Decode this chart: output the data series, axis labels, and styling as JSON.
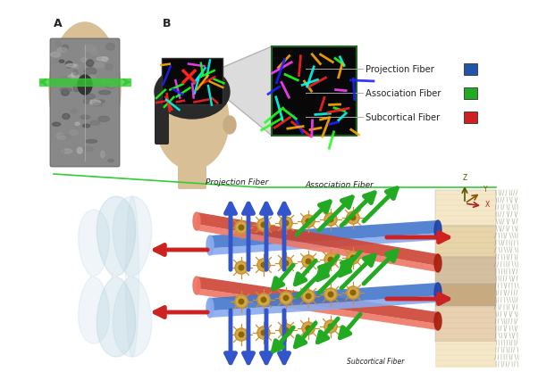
{
  "bg_color": "#ffffff",
  "legend_items": [
    {
      "label": "Projection Fiber",
      "color": "#2255aa"
    },
    {
      "label": "Association Fiber",
      "color": "#22aa22"
    },
    {
      "label": "Subcortical Fiber",
      "color": "#cc2222"
    }
  ],
  "label_A": "A",
  "label_B": "B",
  "proj_fiber_label": "Projection Fiber",
  "assoc_fiber_label": "Association Fiber",
  "subcort_fiber_label": "Subcortical Fiber",
  "proj_color": "#3355cc",
  "assoc_color": "#22aa22",
  "subcort_color": "#cc2222",
  "green_line_color": "#33cc33",
  "neuron_body_color": "#d4a84a",
  "neuron_ring_color": "#c89030",
  "skin_color": "#d9bf95",
  "hair_color": "#2a2a2a",
  "zoom_bg": "#b0b0b0",
  "dti_bg": "#080808",
  "cyl_blue_main": "#4477cc",
  "cyl_blue_hi": "#88aaee",
  "cyl_blue_lo": "#2244aa",
  "cyl_red_main": "#cc4433",
  "cyl_red_hi": "#ee7766",
  "tissue_color1": "#f5e8c8",
  "tissue_color2": "#e8d4a8",
  "tissue_color3": "#d4bfa0",
  "myelin_color": "#aaccdd"
}
